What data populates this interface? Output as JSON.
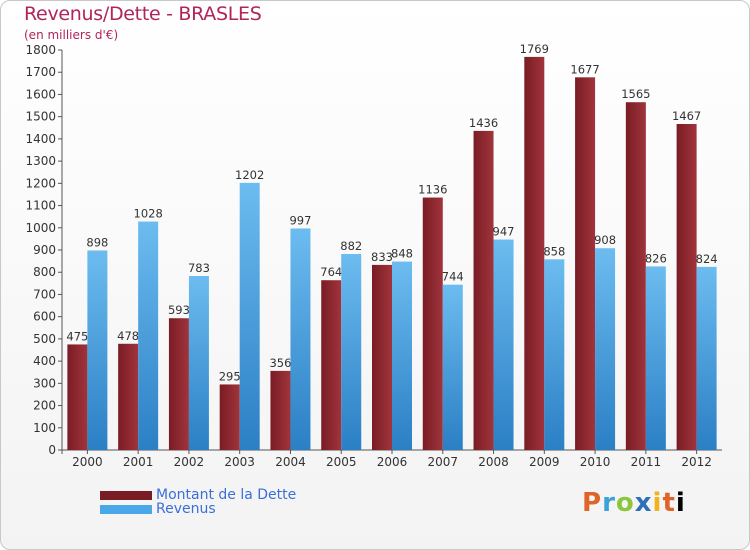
{
  "header": {
    "title": "Revenus/Dette - BRASLES",
    "subtitle": "(en milliers d'€)"
  },
  "legend": {
    "dette_label": "Montant de la Dette",
    "revenus_label": "Revenus"
  },
  "logo": {
    "letters": [
      "P",
      "r",
      "o",
      "x",
      "i",
      "t",
      "i"
    ]
  },
  "colors": {
    "dette": "#7a1c24",
    "dette_light": "#a0343c",
    "revenus": "#4aa8e8",
    "revenus_light": "#6cbcf0",
    "title": "#b0245a"
  },
  "chart_data": {
    "type": "bar",
    "title": "Revenus/Dette - BRASLES",
    "ylabel": "(en milliers d'€)",
    "categories": [
      "2000",
      "2001",
      "2002",
      "2003",
      "2004",
      "2005",
      "2006",
      "2007",
      "2008",
      "2009",
      "2010",
      "2011",
      "2012"
    ],
    "series": [
      {
        "name": "Montant de la Dette",
        "values": [
          475,
          478,
          593,
          295,
          356,
          764,
          833,
          1136,
          1436,
          1769,
          1677,
          1565,
          1467
        ]
      },
      {
        "name": "Revenus",
        "values": [
          898,
          1028,
          783,
          1202,
          997,
          882,
          848,
          744,
          947,
          858,
          908,
          826,
          824
        ]
      }
    ],
    "ylim": [
      0,
      1800
    ],
    "yticks": [
      0,
      100,
      200,
      300,
      400,
      500,
      600,
      700,
      800,
      900,
      1000,
      1100,
      1200,
      1300,
      1400,
      1500,
      1600,
      1700,
      1800
    ],
    "legend_position": "bottom-left",
    "grid": false
  }
}
